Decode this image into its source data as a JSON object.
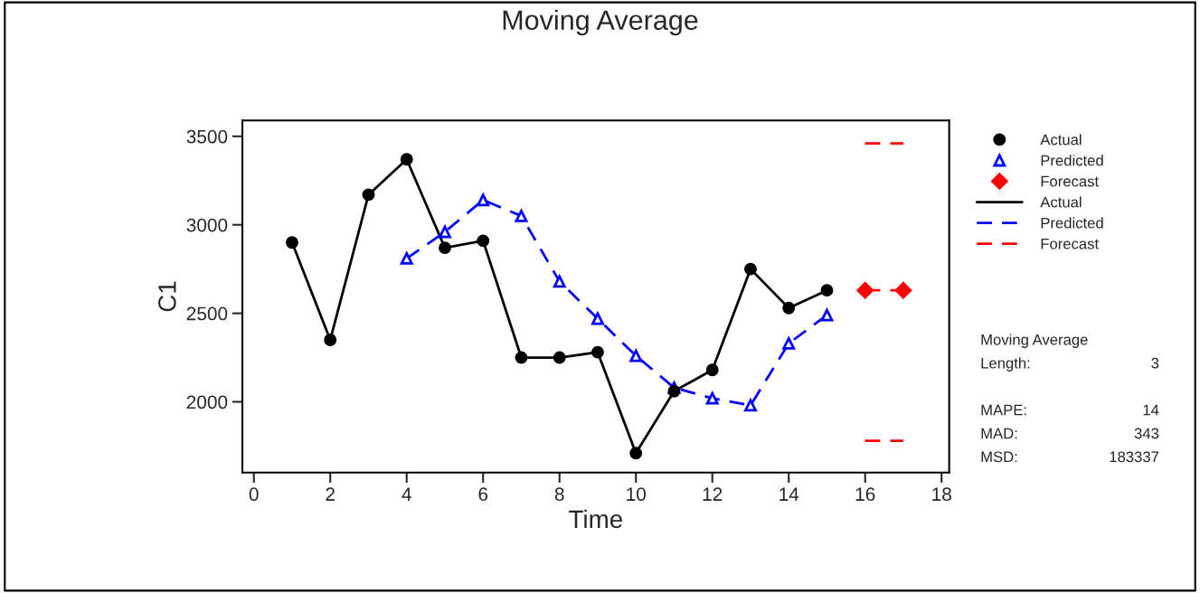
{
  "chart_data": {
    "type": "line",
    "title": "Moving Average",
    "xlabel": "Time",
    "ylabel": "C1",
    "x": [
      1,
      2,
      3,
      4,
      5,
      6,
      7,
      8,
      9,
      10,
      11,
      12,
      13,
      14,
      15
    ],
    "series": [
      {
        "name": "Actual",
        "color": "#000000",
        "marker": "circle",
        "line_style": "solid",
        "values": [
          2900,
          2350,
          3170,
          3370,
          2870,
          2910,
          2250,
          2250,
          2280,
          1710,
          2060,
          2180,
          2750,
          2530,
          2630
        ]
      },
      {
        "name": "Predicted",
        "color": "#0000ff",
        "marker": "triangle",
        "line_style": "dashed",
        "x": [
          4,
          5,
          6,
          7,
          8,
          9,
          10,
          11,
          12,
          13,
          14,
          15
        ],
        "values": [
          2810,
          2960,
          3140,
          3050,
          2680,
          2470,
          2260,
          2080,
          2020,
          1980,
          2330,
          2490
        ]
      },
      {
        "name": "Forecast",
        "color": "#ff0000",
        "marker": "diamond",
        "line_style": "dashed",
        "x": [
          16,
          17
        ],
        "values": [
          2630,
          2630
        ]
      },
      {
        "color": "#ff0000",
        "marker": "none",
        "line_style": "dashed",
        "x": [
          16,
          17
        ],
        "values": [
          3460,
          3460
        ]
      },
      {
        "color": "#ff0000",
        "marker": "none",
        "line_style": "dashed",
        "x": [
          16,
          17
        ],
        "values": [
          1780,
          1780
        ]
      }
    ],
    "xlim": [
      -0.3,
      18.2
    ],
    "xticks": [
      0,
      2,
      4,
      6,
      8,
      10,
      12,
      14,
      16,
      18
    ],
    "ylim": [
      1600,
      3590
    ],
    "yticks": [
      2000,
      2500,
      3000,
      3500
    ],
    "grid": false,
    "legend": "right",
    "annotations": [
      "Moving Average",
      "Length:",
      "3",
      "MAPE:",
      "14",
      "MAD:",
      "343",
      "MSD:",
      "183337"
    ]
  }
}
